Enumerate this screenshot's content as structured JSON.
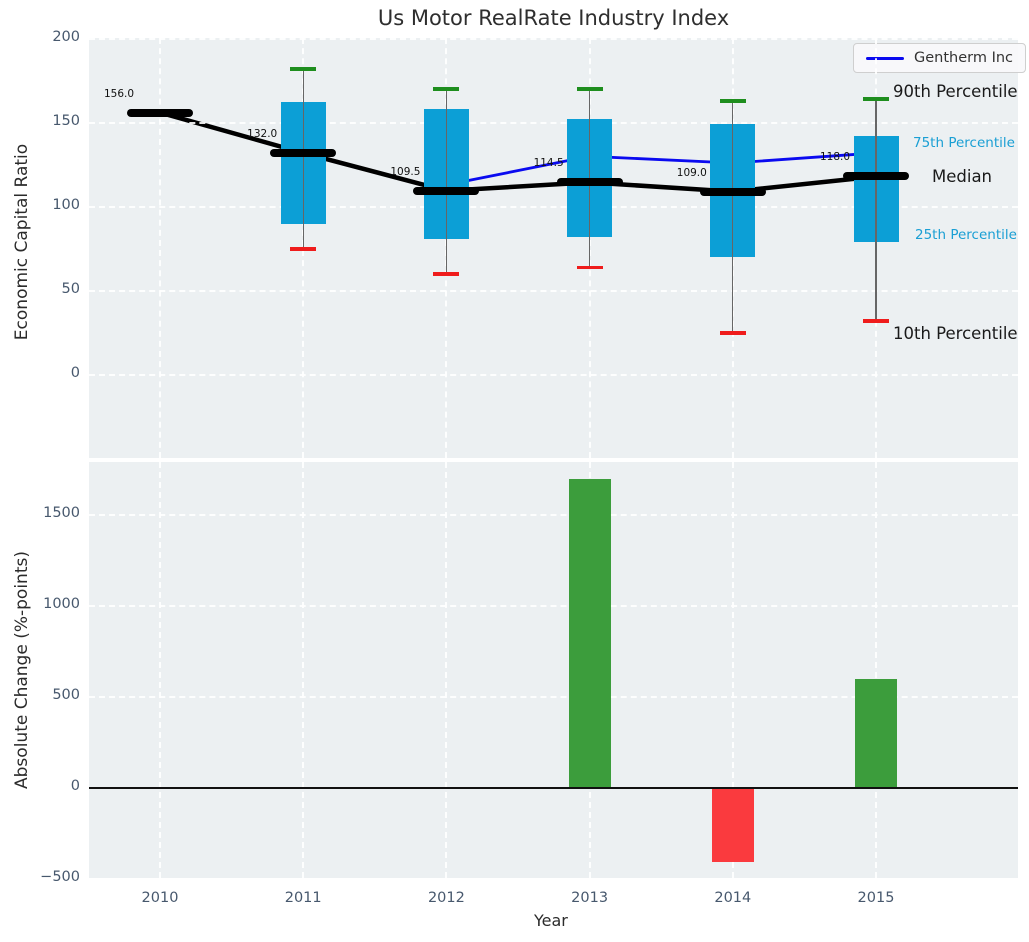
{
  "figure": {
    "title": "Us Motor RealRate Industry Index"
  },
  "legend": {
    "label": "Gentherm Inc"
  },
  "side_labels": {
    "p90": "90th Percentile",
    "p75": "75th Percentile",
    "median": "Median",
    "p25": "25th Percentile",
    "p10": "10th Percentile"
  },
  "colors": {
    "box": "#0c9fd6",
    "median": "#000000",
    "company_line": "#0a0af0",
    "whisker_high_cap": "#1e8e1e",
    "whisker_low_cap": "#ef1c1c",
    "whisker_stem": "#666666",
    "bar_positive": "#3c9d3c",
    "bar_negative": "#fa3a3e",
    "axes_background": "#ecf0f2",
    "tick_text": "#47586d"
  },
  "chart_data": [
    {
      "type": "boxplot",
      "title": "Us Motor RealRate Industry Index",
      "ylabel": "Economic Capital Ratio",
      "ylim": [
        -49.3,
        200.3
      ],
      "yticks": [
        0,
        50,
        100,
        150,
        200
      ],
      "grid": true,
      "legend_position": "upper right",
      "categories": [
        "2010",
        "2011",
        "2012",
        "2013",
        "2014",
        "2015"
      ],
      "percentiles": [
        {
          "year": "2010",
          "p10": null,
          "p25": null,
          "median": 156.0,
          "p75": null,
          "p90": null
        },
        {
          "year": "2011",
          "p10": 75,
          "p25": 90,
          "median": 132.0,
          "p75": 162,
          "p90": 182
        },
        {
          "year": "2012",
          "p10": 60,
          "p25": 81,
          "median": 109.5,
          "p75": 158,
          "p90": 170
        },
        {
          "year": "2013",
          "p10": 64,
          "p25": 82,
          "median": 114.5,
          "p75": 152,
          "p90": 170
        },
        {
          "year": "2014",
          "p10": 25,
          "p25": 70,
          "median": 109.0,
          "p75": 149,
          "p90": 163
        },
        {
          "year": "2015",
          "p10": 32,
          "p25": 79,
          "median": 118.0,
          "p75": 142,
          "p90": 164
        }
      ],
      "median_labels": [
        "156.0",
        "132.0",
        "109.5",
        "114.5",
        "109.0",
        "118.0"
      ],
      "series": [
        {
          "name": "Gentherm Inc",
          "x": [
            "2012",
            "2013",
            "2014",
            "2015"
          ],
          "values": [
            113,
            130,
            126,
            132
          ]
        }
      ]
    },
    {
      "type": "bar",
      "ylabel": "Absolute Change (%-points)",
      "xlabel": "Year",
      "categories": [
        "2010",
        "2011",
        "2012",
        "2013",
        "2014",
        "2015"
      ],
      "values": [
        null,
        null,
        null,
        1700,
        -400,
        600
      ],
      "ylim": [
        -494,
        1791
      ],
      "yticks": [
        -500,
        0,
        500,
        1000,
        1500
      ],
      "grid": true
    }
  ]
}
